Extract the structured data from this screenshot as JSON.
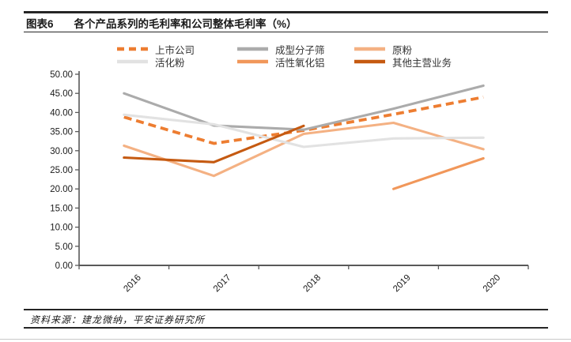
{
  "header": {
    "label": "图表6",
    "title": "各个产品系列的毛利率和公司整体毛利率（%）"
  },
  "footer": {
    "source": "资料来源：建龙微纳，平安证券研究所"
  },
  "chart_data": {
    "type": "line",
    "title": "各个产品系列的毛利率和公司整体毛利率（%）",
    "categories": [
      "2016",
      "2017",
      "2018",
      "2019",
      "2020"
    ],
    "series": [
      {
        "name": "上市公司",
        "color": "#ED7D31",
        "dashed": true,
        "values": [
          38.8,
          31.9,
          35.3,
          39.5,
          44.0
        ]
      },
      {
        "name": "成型分子筛",
        "color": "#ABABAB",
        "dashed": false,
        "values": [
          45.0,
          36.6,
          35.5,
          41.0,
          47.0
        ]
      },
      {
        "name": "原粉",
        "color": "#F4B183",
        "dashed": false,
        "values": [
          31.3,
          23.4,
          34.4,
          37.3,
          30.4
        ]
      },
      {
        "name": "活化粉",
        "color": "#E2E2E2",
        "dashed": false,
        "values": [
          39.4,
          36.9,
          31.0,
          33.2,
          33.4
        ]
      },
      {
        "name": "活性氧化铝",
        "color": "#F1975A",
        "dashed": false,
        "values": [
          null,
          null,
          null,
          20.0,
          28.0
        ]
      },
      {
        "name": "其他主营业务",
        "color": "#C55A11",
        "dashed": false,
        "values": [
          28.2,
          27.0,
          36.5,
          null,
          null
        ]
      }
    ],
    "xlabel": "",
    "ylabel": "",
    "ylim": [
      0,
      50
    ],
    "ytick_step": 5,
    "ytick_decimals": 2,
    "grid": false,
    "legend_position": "top",
    "axis_color": "#595959",
    "tick_label_color": "#1a1a1a"
  }
}
